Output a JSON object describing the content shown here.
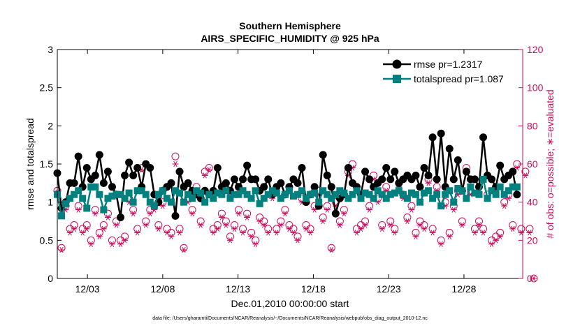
{
  "chart_data": {
    "type": "line",
    "title": "Southern Hemisphere",
    "subtitle": "AIRS_SPECIFIC_HUMIDITY @ 925 hPa",
    "xlabel": "Dec.01,2010 00:00:00 start",
    "ylabel_left": "rmse and totalspread",
    "ylabel_right": "# of obs: o=possible; ∗=evaluated",
    "ylim_left": [
      0,
      3
    ],
    "ylim_right": [
      0,
      120
    ],
    "xlim": [
      1,
      31.9
    ],
    "x_ticks": [
      {
        "value": 3,
        "label": "12/03"
      },
      {
        "value": 8,
        "label": "12/08"
      },
      {
        "value": 13,
        "label": "12/13"
      },
      {
        "value": 18,
        "label": "12/18"
      },
      {
        "value": 23,
        "label": "12/23"
      },
      {
        "value": 28,
        "label": "12/28"
      }
    ],
    "y_ticks_left": [
      "0",
      "0.5",
      "1",
      "1.5",
      "2",
      "2.5",
      "3"
    ],
    "y_ticks_right": [
      "0",
      "20",
      "40",
      "60",
      "80",
      "100",
      "120"
    ],
    "legend": {
      "placement": "top-right"
    },
    "colors": {
      "rmse": "#000000",
      "totalspread": "#00807f",
      "obs": "#cc0a5a"
    },
    "series": [
      {
        "name": "rmse pr=1.2317",
        "marker": "circle",
        "values": [
          1.38,
          0.92,
          1.0,
          1.25,
          1.25,
          1.6,
          1.2,
          1.45,
          1.3,
          1.35,
          1.62,
          1.25,
          1.4,
          1.2,
          1.1,
          0.8,
          1.35,
          1.52,
          1.35,
          1.45,
          1.2,
          1.5,
          1.45,
          1.1,
          1.0,
          1.15,
          1.2,
          1.25,
          0.82,
          1.4,
          1.2,
          1.25,
          1.15,
          1.1,
          1.05,
          1.15,
          1.1,
          1.15,
          1.45,
          1.2,
          1.25,
          1.15,
          1.3,
          1.2,
          1.3,
          1.48,
          1.3,
          1.3,
          1.15,
          1.2,
          1.3,
          1.1,
          1.2,
          1.25,
          1.1,
          1.2,
          1.3,
          1.25,
          1.45,
          1.0,
          1.1,
          1.2,
          0.95,
          1.62,
          1.35,
          1.2,
          0.85,
          1.05,
          1.1,
          1.45,
          1.25,
          1.2,
          1.1,
          1.4,
          1.3,
          1.2,
          1.25,
          1.3,
          1.45,
          1.3,
          1.4,
          1.25,
          1.3,
          1.35,
          1.3,
          1.35,
          1.2,
          1.45,
          1.35,
          1.85,
          1.3,
          1.9,
          1.2,
          1.7,
          1.3,
          1.55,
          1.15,
          1.4,
          1.3,
          1.3,
          1.2,
          1.85,
          1.35,
          1.3,
          1.2,
          1.48,
          1.3,
          1.35,
          1.4,
          1.1
        ],
        "x_start": 1.0,
        "x_step": 0.28
      },
      {
        "name": "totalspread pr=1.087",
        "marker": "square",
        "values": [
          1.1,
          0.82,
          0.98,
          1.05,
          1.1,
          1.15,
          1.05,
          0.92,
          1.2,
          1.2,
          1.1,
          0.9,
          1.05,
          1.08,
          1.1,
          1.1,
          1.05,
          1.12,
          1.0,
          1.15,
          1.15,
          1.1,
          1.0,
          0.95,
          1.1,
          1.15,
          1.05,
          1.0,
          1.15,
          1.12,
          1.0,
          1.1,
          1.05,
          1.15,
          1.12,
          1.0,
          1.1,
          1.05,
          1.12,
          1.1,
          1.15,
          1.05,
          1.1,
          1.1,
          1.15,
          1.1,
          1.05,
          1.15,
          0.98,
          1.05,
          1.1,
          1.15,
          1.12,
          1.05,
          1.1,
          1.15,
          1.08,
          1.1,
          1.15,
          1.05,
          1.1,
          1.12,
          1.0,
          1.15,
          1.1,
          1.05,
          1.1,
          1.15,
          1.12,
          1.05,
          1.1,
          1.15,
          1.05,
          1.12,
          1.1,
          1.05,
          1.15,
          1.1,
          1.05,
          1.1,
          1.12,
          1.15,
          1.1,
          1.05,
          1.12,
          1.1,
          1.0,
          1.12,
          1.15,
          1.05,
          1.1,
          0.95,
          1.1,
          1.15,
          1.0,
          1.18,
          1.15,
          1.05,
          1.2,
          1.12,
          1.1,
          1.3,
          1.05,
          1.15,
          1.1,
          1.2,
          1.1,
          1.15,
          1.2,
          1.2
        ],
        "x_start": 1.0,
        "x_step": 0.28
      },
      {
        "name": "obs possible",
        "marker": "open-circle",
        "axis": "right",
        "values": [
          46,
          16,
          38,
          26,
          28,
          38,
          26,
          28,
          20,
          36,
          24,
          28,
          34,
          20,
          30,
          20,
          22,
          42,
          36,
          26,
          58,
          30,
          36,
          38,
          28,
          40,
          26,
          24,
          64,
          26,
          16,
          42,
          36,
          48,
          30,
          56,
          58,
          26,
          28,
          34,
          30,
          22,
          28,
          36,
          26,
          34,
          24,
          20,
          32,
          30,
          26,
          44,
          26,
          30,
          36,
          28,
          26,
          22,
          42,
          28,
          26,
          38,
          46,
          32,
          38,
          16,
          40,
          30,
          36,
          56,
          60,
          26,
          28,
          30,
          38,
          54,
          42,
          28,
          48,
          30,
          26,
          50,
          44,
          32,
          38,
          24,
          30,
          28,
          52,
          26,
          48,
          20,
          40,
          24,
          38,
          46,
          30,
          58,
          46,
          26,
          30,
          26,
          44,
          20,
          22,
          24,
          40,
          44,
          28,
          60,
          26,
          56,
          26,
          0
        ]
      },
      {
        "name": "obs evaluated",
        "marker": "asterisk",
        "axis": "right",
        "values": [
          45,
          15,
          36,
          24,
          26,
          36,
          24,
          26,
          18,
          34,
          22,
          26,
          32,
          18,
          28,
          18,
          20,
          40,
          34,
          24,
          57,
          28,
          34,
          36,
          26,
          38,
          24,
          22,
          60,
          24,
          15,
          40,
          34,
          46,
          28,
          54,
          57,
          24,
          26,
          32,
          28,
          20,
          26,
          34,
          24,
          32,
          22,
          18,
          30,
          28,
          24,
          42,
          24,
          28,
          34,
          26,
          24,
          20,
          40,
          26,
          24,
          36,
          44,
          30,
          36,
          15,
          38,
          28,
          34,
          54,
          58,
          24,
          26,
          28,
          36,
          52,
          40,
          26,
          46,
          28,
          24,
          48,
          42,
          30,
          36,
          22,
          28,
          26,
          50,
          24,
          46,
          18,
          38,
          22,
          36,
          44,
          28,
          56,
          44,
          24,
          28,
          24,
          42,
          18,
          20,
          22,
          38,
          42,
          26,
          58,
          24,
          54,
          24,
          0
        ]
      }
    ]
  },
  "legend": {
    "rmse": "rmse pr=1.2317",
    "totalspread": "totalspread pr=1.087"
  },
  "footer": "data file: /Users/gharamti/Documents/NCAR/Reanalysis/~/Documents/NCAR/Reanalysis/webpub/obs_diag_output_2010-12.nc"
}
